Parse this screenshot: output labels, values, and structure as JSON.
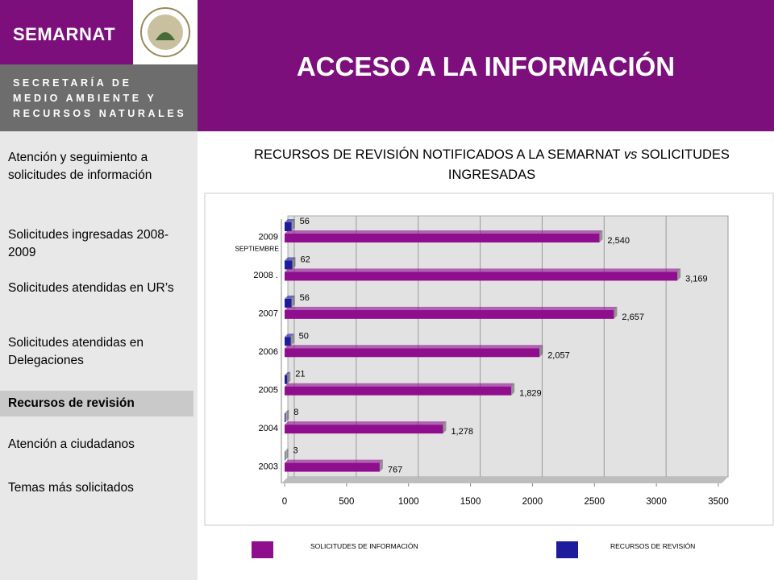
{
  "header": {
    "logo": "SEMARNAT",
    "ministry_lines": [
      "SECRETARÍA DE",
      "MEDIO AMBIENTE Y",
      "RECURSOS NATURALES"
    ],
    "title": "ACCESO A LA INFORMACIÓN"
  },
  "sidebar": {
    "items": [
      "Atención y seguimiento a solicitudes de información",
      "Solicitudes ingresadas 2008-2009",
      "Solicitudes atendidas en UR’s",
      "Solicitudes atendidas en Delegaciones",
      "Recursos de revisión",
      "Atención a ciudadanos",
      "Temas más solicitados"
    ],
    "active": 4
  },
  "chart_data": {
    "type": "hbar",
    "title_parts": [
      "RECURSOS DE REVISIÓN NOTIFICADOS A LA SEMARNAT ",
      "vs",
      " SOLICITUDES INGRESADAS"
    ],
    "categories": [
      "2009",
      "2008 .",
      "2007",
      "2006",
      "2005",
      "2004",
      "2003"
    ],
    "category_note": "SEPTIEMBRE",
    "series": [
      {
        "name": "RECURSOS DE REVISIÓN",
        "color": "#1c1c9c",
        "values": [
          56,
          62,
          56,
          50,
          21,
          8,
          3
        ]
      },
      {
        "name": "SOLICITUDES DE INFORMACIÓN",
        "color": "#8e0e8e",
        "values": [
          2540,
          3169,
          2657,
          2057,
          1829,
          1278,
          767
        ],
        "value_labels": [
          "2,540",
          "3,169",
          "2,657",
          "2,057",
          "1,829",
          "1,278",
          "767"
        ]
      }
    ],
    "legend_order": [
      1,
      0
    ],
    "xlim": [
      0,
      3500
    ],
    "xticks": [
      0,
      500,
      1000,
      1500,
      2000,
      2500,
      3000,
      3500
    ],
    "grid": true
  }
}
